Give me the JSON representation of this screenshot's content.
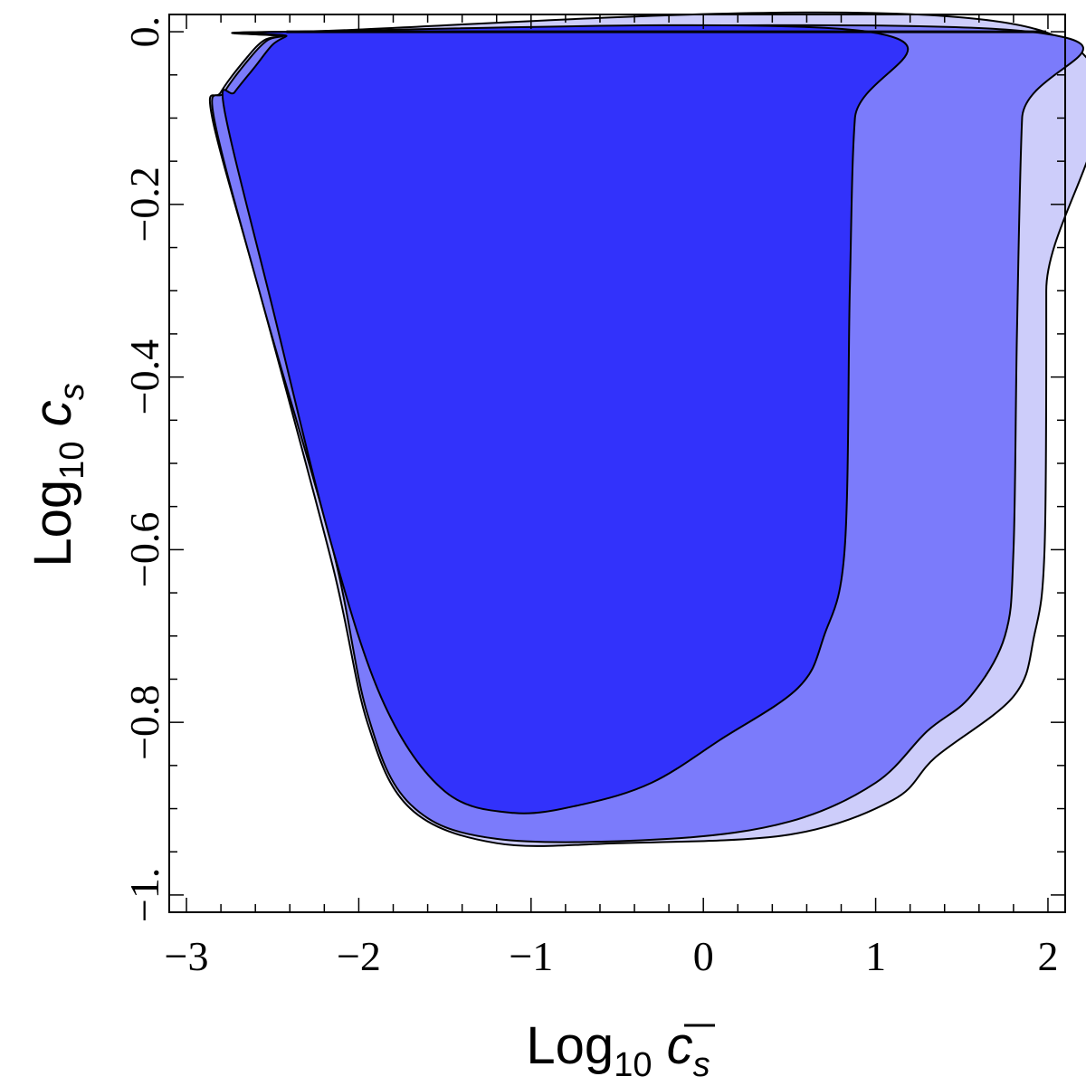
{
  "chart_data": {
    "type": "contour",
    "xlabel": {
      "prefix": "Log",
      "sub": "10",
      "var": "c",
      "var_sub": "s",
      "bar": true
    },
    "ylabel": {
      "prefix": "Log",
      "sub": "10",
      "var": "c",
      "var_sub": "s",
      "bar": false
    },
    "xlim": [
      -3.1,
      2.1
    ],
    "ylim": [
      -1.02,
      0.02
    ],
    "x_ticks": [
      {
        "v": -3,
        "label": "−3"
      },
      {
        "v": -2,
        "label": "−2"
      },
      {
        "v": -1,
        "label": "−1"
      },
      {
        "v": 0,
        "label": "0"
      },
      {
        "v": 1,
        "label": "1"
      },
      {
        "v": 2,
        "label": "2"
      }
    ],
    "y_ticks": [
      {
        "v": 0,
        "label": "0."
      },
      {
        "v": -0.2,
        "label": "−0.2"
      },
      {
        "v": -0.4,
        "label": "−0.4"
      },
      {
        "v": -0.6,
        "label": "−0.6"
      },
      {
        "v": -0.8,
        "label": "−0.8"
      },
      {
        "v": -1,
        "label": "−1."
      }
    ],
    "regions": [
      {
        "level": "outer",
        "color": "#cdcdfa",
        "points": [
          [
            -2.4,
            0
          ],
          [
            1.98,
            0
          ],
          [
            1.99,
            -0.3
          ],
          [
            1.98,
            -0.6
          ],
          [
            1.92,
            -0.7
          ],
          [
            1.8,
            -0.77
          ],
          [
            1.35,
            -0.84
          ],
          [
            1.1,
            -0.89
          ],
          [
            0.5,
            -0.93
          ],
          [
            -0.5,
            -0.94
          ],
          [
            -1.2,
            -0.94
          ],
          [
            -1.7,
            -0.9
          ],
          [
            -1.95,
            -0.8
          ],
          [
            -2.15,
            -0.62
          ],
          [
            -2.55,
            -0.32
          ],
          [
            -2.85,
            -0.1
          ],
          [
            -2.8,
            -0.07
          ],
          [
            -2.65,
            -0.03
          ],
          [
            -2.55,
            -0.01
          ],
          [
            -2.45,
            -0.005
          ]
        ]
      },
      {
        "level": "middle",
        "color": "#7b7bfb",
        "points": [
          [
            -2.4,
            0
          ],
          [
            1.9,
            0
          ],
          [
            1.85,
            -0.1
          ],
          [
            1.82,
            -0.35
          ],
          [
            1.8,
            -0.6
          ],
          [
            1.75,
            -0.7
          ],
          [
            1.55,
            -0.77
          ],
          [
            1.3,
            -0.81
          ],
          [
            1.0,
            -0.87
          ],
          [
            0.5,
            -0.915
          ],
          [
            -0.2,
            -0.935
          ],
          [
            -1.2,
            -0.935
          ],
          [
            -1.7,
            -0.895
          ],
          [
            -1.95,
            -0.79
          ],
          [
            -2.15,
            -0.6
          ],
          [
            -2.55,
            -0.32
          ],
          [
            -2.84,
            -0.1
          ],
          [
            -2.78,
            -0.07
          ],
          [
            -2.63,
            -0.03
          ],
          [
            -2.53,
            -0.01
          ],
          [
            -2.44,
            -0.005
          ]
        ]
      },
      {
        "level": "inner",
        "color": "#3232fb",
        "points": [
          [
            -2.4,
            0
          ],
          [
            0.96,
            0
          ],
          [
            0.88,
            -0.1
          ],
          [
            0.85,
            -0.3
          ],
          [
            0.82,
            -0.6
          ],
          [
            0.7,
            -0.7
          ],
          [
            0.55,
            -0.76
          ],
          [
            0.1,
            -0.82
          ],
          [
            -0.3,
            -0.87
          ],
          [
            -0.7,
            -0.895
          ],
          [
            -1.1,
            -0.905
          ],
          [
            -1.5,
            -0.88
          ],
          [
            -1.85,
            -0.78
          ],
          [
            -2.15,
            -0.6
          ],
          [
            -2.5,
            -0.32
          ],
          [
            -2.78,
            -0.09
          ],
          [
            -2.72,
            -0.07
          ],
          [
            -2.6,
            -0.04
          ],
          [
            -2.5,
            -0.015
          ],
          [
            -2.42,
            -0.005
          ]
        ]
      }
    ]
  }
}
